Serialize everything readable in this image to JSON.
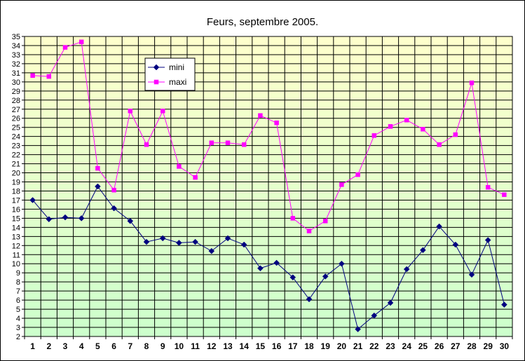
{
  "chart_data": {
    "type": "line",
    "title": "Feurs, septembre 2005.",
    "xlabel": "",
    "ylabel": "",
    "x": [
      1,
      2,
      3,
      4,
      5,
      6,
      7,
      8,
      9,
      10,
      11,
      12,
      13,
      14,
      15,
      16,
      17,
      18,
      19,
      20,
      21,
      22,
      23,
      24,
      25,
      26,
      27,
      28,
      29,
      30
    ],
    "ylim": [
      2,
      35
    ],
    "yticks": [
      2,
      3,
      4,
      5,
      6,
      7,
      8,
      9,
      10,
      11,
      12,
      13,
      14,
      15,
      16,
      17,
      18,
      19,
      20,
      21,
      22,
      23,
      24,
      25,
      26,
      27,
      28,
      29,
      30,
      31,
      32,
      33,
      34,
      35
    ],
    "grid": true,
    "legend_position": "top-left-inside",
    "series": [
      {
        "name": "mini",
        "color": "#000080",
        "marker": "diamond",
        "values": [
          17.0,
          14.9,
          15.1,
          15.0,
          18.5,
          16.1,
          14.7,
          12.4,
          12.8,
          12.3,
          12.4,
          11.4,
          12.8,
          12.1,
          9.5,
          10.1,
          8.5,
          6.1,
          8.6,
          10.0,
          2.8,
          4.3,
          5.7,
          9.4,
          11.5,
          14.1,
          12.1,
          8.8,
          12.6,
          5.5
        ]
      },
      {
        "name": "maxi",
        "color": "#ff00ff",
        "marker": "square",
        "values": [
          30.7,
          30.6,
          33.8,
          34.4,
          20.5,
          18.1,
          26.8,
          23.1,
          26.8,
          20.7,
          19.5,
          23.3,
          23.3,
          23.1,
          26.3,
          25.5,
          15.0,
          13.6,
          14.7,
          18.7,
          19.8,
          24.1,
          25.1,
          25.8,
          24.8,
          23.1,
          24.2,
          29.9,
          18.4,
          17.6
        ]
      }
    ],
    "colors": {
      "background_top": "#ffffcc",
      "background_bottom": "#ccffcc",
      "grid": "#000000"
    }
  }
}
